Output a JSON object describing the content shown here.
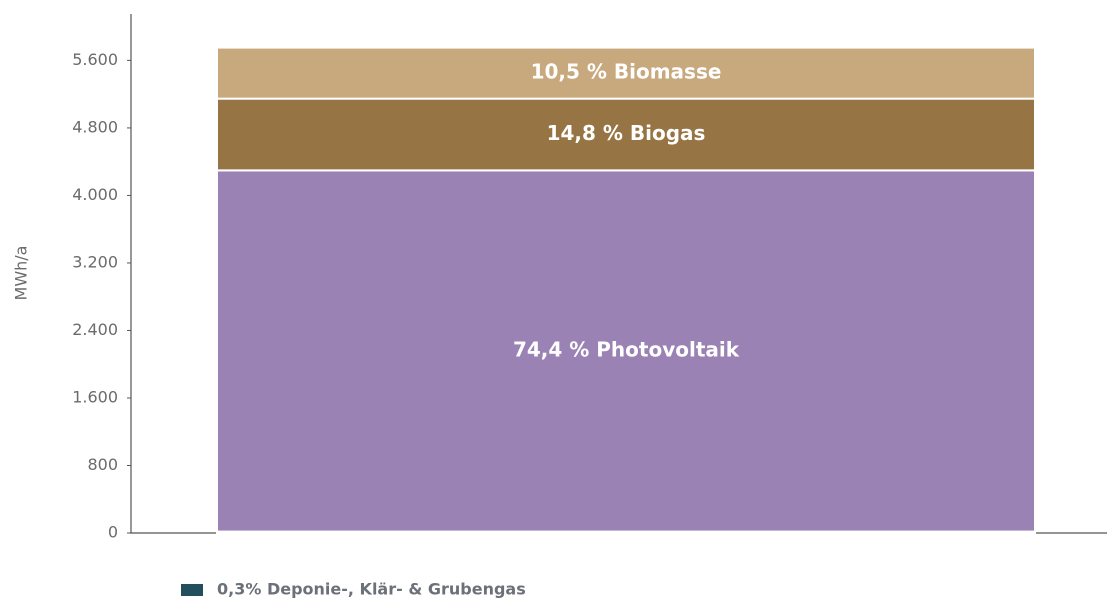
{
  "chart_data": {
    "type": "stacked_bar",
    "y_label": "MWh/a",
    "categories": [
      null
    ],
    "series": [
      {
        "name": "0,3% Deponie-, Klär- & Grubengas",
        "color": "#234e5e",
        "values": [
          17
        ]
      },
      {
        "name": "74,4 % Photovoltaik",
        "color": "#9a82b5",
        "values": [
          4280
        ]
      },
      {
        "name": "14,8 % Biogas",
        "color": "#977443",
        "values": [
          850
        ]
      },
      {
        "name": "10,5 % Biomasse",
        "color": "#c8a97e",
        "values": [
          605
        ]
      }
    ],
    "ylim": [
      0,
      6150
    ],
    "yticks": [
      0,
      800,
      {
        "value": 1600,
        "label": "1.600"
      },
      {
        "value": 2400,
        "label": "2.400"
      },
      {
        "value": 3200,
        "label": "3.200"
      },
      {
        "value": 4000,
        "label": "4.000"
      },
      {
        "value": 4800,
        "label": "4.800"
      },
      {
        "value": 5600,
        "label": "5.600"
      }
    ],
    "grid": false
  }
}
